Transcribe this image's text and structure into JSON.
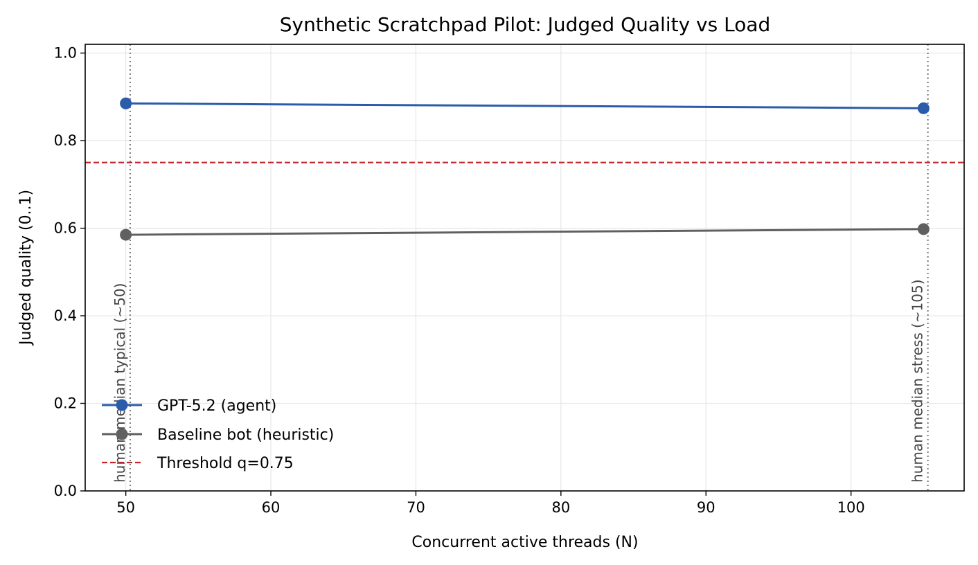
{
  "chart_data": {
    "type": "line",
    "title": "Synthetic Scratchpad Pilot: Judged Quality vs Load",
    "xlabel": "Concurrent active threads (N)",
    "ylabel": "Judged quality (0..1)",
    "xlim": [
      47.2,
      107.8
    ],
    "ylim": [
      0.0,
      1.02
    ],
    "xticks": [
      50,
      60,
      70,
      80,
      90,
      100
    ],
    "yticks": [
      0.0,
      0.2,
      0.4,
      0.6,
      0.8,
      1.0
    ],
    "xtick_labels": [
      "50",
      "60",
      "70",
      "80",
      "90",
      "100"
    ],
    "ytick_labels": [
      "0.0",
      "0.2",
      "0.4",
      "0.6",
      "0.8",
      "1.0"
    ],
    "grid": true,
    "legend_position": "lower-left",
    "series": [
      {
        "name": "GPT-5.2 (agent)",
        "color": "#2a5caa",
        "x": [
          50,
          105
        ],
        "y": [
          0.885,
          0.874
        ]
      },
      {
        "name": "Baseline bot (heuristic)",
        "color": "#606060",
        "x": [
          50,
          105
        ],
        "y": [
          0.585,
          0.598
        ]
      }
    ],
    "threshold": {
      "name": "Threshold q=0.75",
      "value": 0.75,
      "color": "#c0272d"
    },
    "annotations": [
      {
        "x": 50.3,
        "text": "human median typical (~50)"
      },
      {
        "x": 105.3,
        "text": "human median stress (~105)"
      }
    ]
  }
}
